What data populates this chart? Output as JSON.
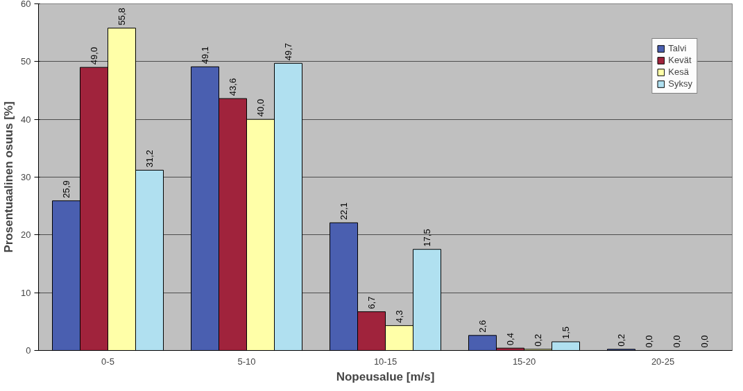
{
  "chart_data": {
    "type": "bar",
    "xlabel": "Nopeusalue [m/s]",
    "ylabel": "Prosentuaalinen osuus [%]",
    "categories": [
      "0-5",
      "5-10",
      "10-15",
      "15-20",
      "20-25"
    ],
    "series": [
      {
        "name": "Talvi",
        "color": "#4a5fb0",
        "values": [
          25.9,
          49.1,
          22.1,
          2.6,
          0.2
        ],
        "value_labels": [
          "25,9",
          "49,1",
          "22,1",
          "2,6",
          "0,2"
        ]
      },
      {
        "name": "Kevät",
        "color": "#a0233c",
        "values": [
          49.0,
          43.6,
          6.7,
          0.4,
          0.0
        ],
        "value_labels": [
          "49,0",
          "43,6",
          "6,7",
          "0,4",
          "0,0"
        ]
      },
      {
        "name": "Kesä",
        "color": "#ffffa8",
        "values": [
          55.8,
          40.0,
          4.3,
          0.2,
          0.0
        ],
        "value_labels": [
          "55,8",
          "40,0",
          "4,3",
          "0,2",
          "0,0"
        ]
      },
      {
        "name": "Syksy",
        "color": "#b0e0f0",
        "values": [
          31.2,
          49.7,
          17.5,
          1.5,
          0.0
        ],
        "value_labels": [
          "31,2",
          "49,7",
          "17,5",
          "1,5",
          "0,0"
        ]
      }
    ],
    "ylim": [
      0,
      60
    ],
    "yticks": [
      0,
      10,
      20,
      30,
      40,
      50,
      60
    ],
    "grid": "y",
    "legend": "top right"
  }
}
